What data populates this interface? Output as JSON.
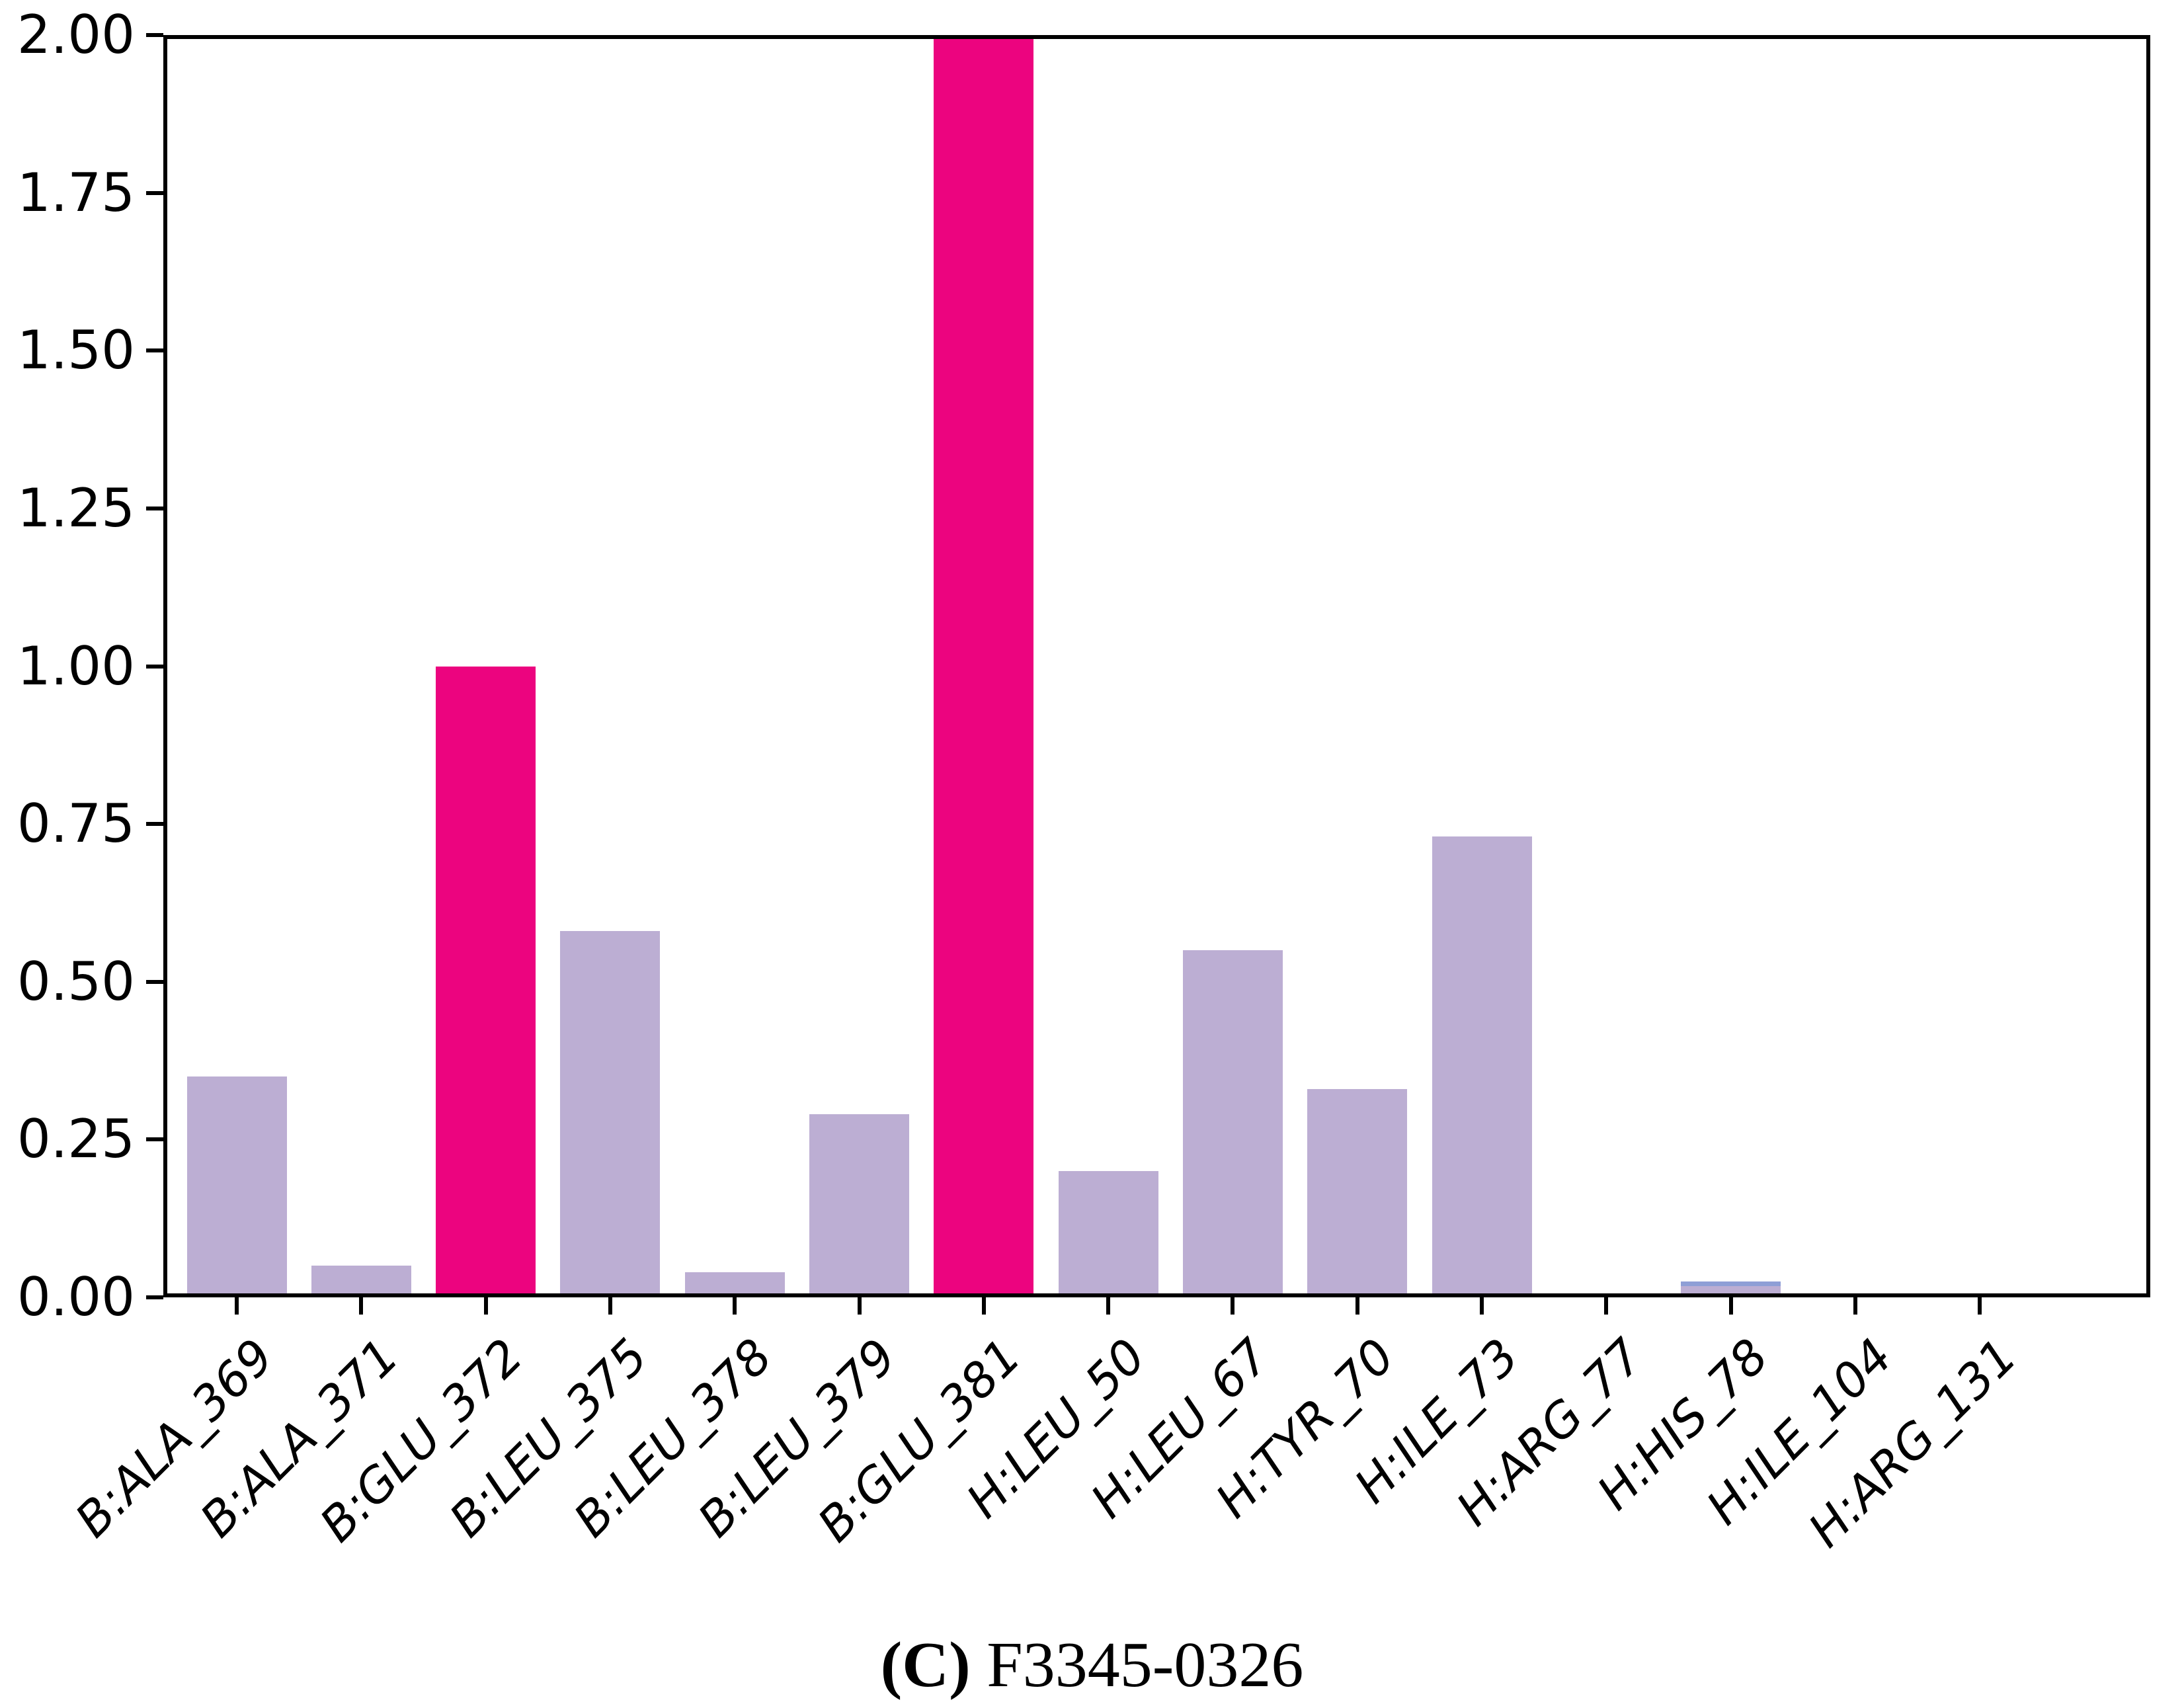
{
  "chart_data": {
    "type": "bar",
    "title": "",
    "xlabel": "",
    "ylabel": "",
    "grid": false,
    "legend": null,
    "ylim": [
      0.0,
      2.0
    ],
    "ytick_step": 0.25,
    "yticks": [
      {
        "label": "0.00",
        "value": 0.0
      },
      {
        "label": "0.25",
        "value": 0.25
      },
      {
        "label": "0.50",
        "value": 0.5
      },
      {
        "label": "0.75",
        "value": 0.75
      },
      {
        "label": "1.00",
        "value": 1.0
      },
      {
        "label": "1.25",
        "value": 1.25
      },
      {
        "label": "1.50",
        "value": 1.5
      },
      {
        "label": "1.75",
        "value": 1.75
      },
      {
        "label": "2.00",
        "value": 2.0
      }
    ],
    "categories": [
      "B:ALA_369",
      "B:ALA_371",
      "B:GLU_372",
      "B:LEU_375",
      "B:LEU_378",
      "B:LEU_379",
      "B:GLU_381",
      "H:LEU_50",
      "H:LEU_67",
      "H:TYR_70",
      "H:ILE_73",
      "H:ARG_77",
      "H:HIS_78",
      "H:ILE_104",
      "H:ARG_131"
    ],
    "values": [
      0.35,
      0.05,
      1.0,
      0.58,
      0.04,
      0.29,
      2.0,
      0.2,
      0.55,
      0.33,
      0.73,
      0.0,
      0.025,
      0.0,
      0.005
    ],
    "bar_colors": [
      "#bcaed3",
      "#bcaed3",
      "#ec047f",
      "#bcaed3",
      "#bcaed3",
      "#bcaed3",
      "#ec047f",
      "#bcaed3",
      "#bcaed3",
      "#bcaed3",
      "#bcaed3",
      "#bcaed3",
      "#bcaed3",
      "#bcaed3",
      "#bcaed3"
    ],
    "highlighted_categories": [
      "B:GLU_372",
      "B:GLU_381"
    ],
    "edge_overrides": [
      {
        "category": "H:HIS_78",
        "top_color": "#8e9fd6"
      }
    ],
    "colors": {
      "default_bar": "#bcaed3",
      "highlight_bar": "#ec047f",
      "axis": "#000000",
      "background": "#ffffff"
    },
    "caption": {
      "index_label": "(C)",
      "compound_id": "F3345-0326"
    }
  }
}
